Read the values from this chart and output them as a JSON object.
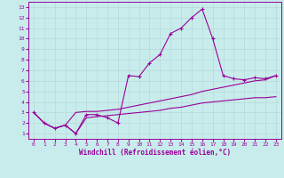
{
  "xlabel": "Windchill (Refroidissement éolien,°C)",
  "bg_color": "#c8ecec",
  "line_color": "#990099",
  "grid_color": "#b8d8d8",
  "series1_x": [
    0,
    1,
    2,
    3,
    4,
    5,
    6,
    7,
    8,
    9,
    10,
    11,
    12,
    13,
    14,
    15,
    16,
    17,
    18,
    19,
    20,
    21,
    22,
    23
  ],
  "series1_y": [
    3.0,
    2.0,
    1.5,
    1.8,
    1.0,
    2.8,
    2.8,
    2.5,
    2.0,
    6.5,
    6.4,
    7.7,
    8.5,
    10.5,
    11.0,
    12.0,
    12.8,
    10.0,
    6.5,
    6.2,
    6.1,
    6.3,
    6.2,
    6.5
  ],
  "series2_x": [
    0,
    1,
    2,
    3,
    4,
    5,
    6,
    7,
    8,
    9,
    10,
    11,
    12,
    13,
    14,
    15,
    16,
    17,
    18,
    19,
    20,
    21,
    22,
    23
  ],
  "series2_y": [
    3.0,
    2.0,
    1.5,
    1.8,
    3.0,
    3.1,
    3.1,
    3.2,
    3.3,
    3.5,
    3.7,
    3.9,
    4.1,
    4.3,
    4.5,
    4.7,
    5.0,
    5.2,
    5.4,
    5.6,
    5.8,
    6.0,
    6.1,
    6.5
  ],
  "series3_x": [
    0,
    1,
    2,
    3,
    4,
    5,
    6,
    7,
    8,
    9,
    10,
    11,
    12,
    13,
    14,
    15,
    16,
    17,
    18,
    19,
    20,
    21,
    22,
    23
  ],
  "series3_y": [
    3.0,
    2.0,
    1.5,
    1.8,
    1.0,
    2.5,
    2.6,
    2.7,
    2.8,
    2.9,
    3.0,
    3.1,
    3.2,
    3.4,
    3.5,
    3.7,
    3.9,
    4.0,
    4.1,
    4.2,
    4.3,
    4.4,
    4.4,
    4.5
  ],
  "xlim": [
    -0.5,
    23.5
  ],
  "ylim": [
    0.5,
    13.5
  ],
  "yticks": [
    1,
    2,
    3,
    4,
    5,
    6,
    7,
    8,
    9,
    10,
    11,
    12,
    13
  ],
  "xticks": [
    0,
    1,
    2,
    3,
    4,
    5,
    6,
    7,
    8,
    9,
    10,
    11,
    12,
    13,
    14,
    15,
    16,
    17,
    18,
    19,
    20,
    21,
    22,
    23
  ]
}
